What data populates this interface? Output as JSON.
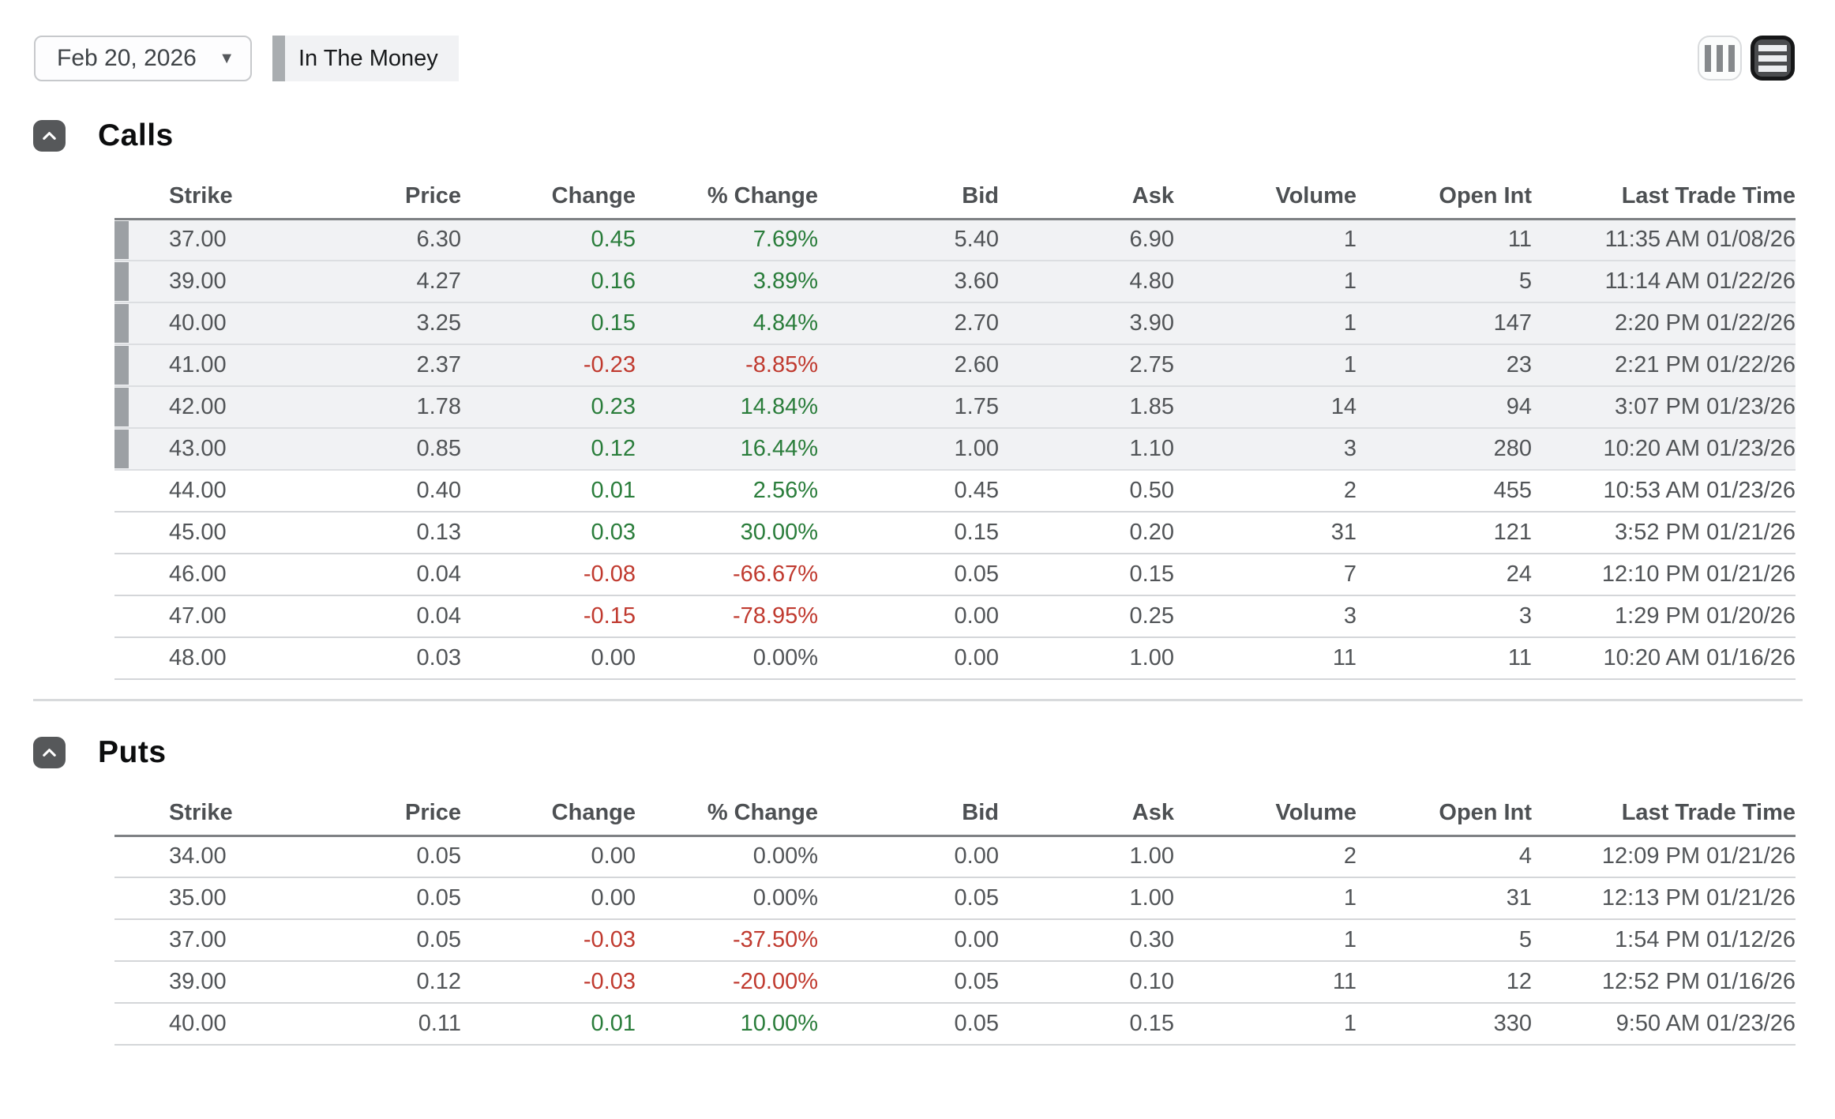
{
  "toolbar": {
    "expiration_dropdown": {
      "value": "Feb 20, 2026",
      "caret_icon": "▼"
    },
    "legend": {
      "label": "In The Money",
      "bar_color": "#a9adb0"
    },
    "view_toggle": {
      "columns_icon": "columns-view-icon",
      "rows_icon": "list-view-icon",
      "selected": "rows"
    }
  },
  "colors": {
    "positive": "#2a7d3b",
    "negative": "#c03a2f",
    "itm_row_background": "#f1f2f4",
    "itm_accent_bar": "#9ca0a4"
  },
  "calls": {
    "title": "Calls",
    "collapse_icon": "chevron-up-icon",
    "columns": [
      "Strike",
      "Price",
      "Change",
      "% Change",
      "Bid",
      "Ask",
      "Volume",
      "Open Int",
      "Last Trade Time"
    ],
    "rows": [
      {
        "itm": true,
        "cells": [
          "37.00",
          "6.30",
          "0.45",
          "7.69%",
          "5.40",
          "6.90",
          "1",
          "11",
          "11:35 AM 01/08/26"
        ]
      },
      {
        "itm": true,
        "cells": [
          "39.00",
          "4.27",
          "0.16",
          "3.89%",
          "3.60",
          "4.80",
          "1",
          "5",
          "11:14 AM 01/22/26"
        ]
      },
      {
        "itm": true,
        "cells": [
          "40.00",
          "3.25",
          "0.15",
          "4.84%",
          "2.70",
          "3.90",
          "1",
          "147",
          "2:20 PM 01/22/26"
        ]
      },
      {
        "itm": true,
        "cells": [
          "41.00",
          "2.37",
          "-0.23",
          "-8.85%",
          "2.60",
          "2.75",
          "1",
          "23",
          "2:21 PM 01/22/26"
        ]
      },
      {
        "itm": true,
        "cells": [
          "42.00",
          "1.78",
          "0.23",
          "14.84%",
          "1.75",
          "1.85",
          "14",
          "94",
          "3:07 PM 01/23/26"
        ]
      },
      {
        "itm": true,
        "cells": [
          "43.00",
          "0.85",
          "0.12",
          "16.44%",
          "1.00",
          "1.10",
          "3",
          "280",
          "10:20 AM 01/23/26"
        ]
      },
      {
        "itm": false,
        "cells": [
          "44.00",
          "0.40",
          "0.01",
          "2.56%",
          "0.45",
          "0.50",
          "2",
          "455",
          "10:53 AM 01/23/26"
        ]
      },
      {
        "itm": false,
        "cells": [
          "45.00",
          "0.13",
          "0.03",
          "30.00%",
          "0.15",
          "0.20",
          "31",
          "121",
          "3:52 PM 01/21/26"
        ]
      },
      {
        "itm": false,
        "cells": [
          "46.00",
          "0.04",
          "-0.08",
          "-66.67%",
          "0.05",
          "0.15",
          "7",
          "24",
          "12:10 PM 01/21/26"
        ]
      },
      {
        "itm": false,
        "cells": [
          "47.00",
          "0.04",
          "-0.15",
          "-78.95%",
          "0.00",
          "0.25",
          "3",
          "3",
          "1:29 PM 01/20/26"
        ]
      },
      {
        "itm": false,
        "cells": [
          "48.00",
          "0.03",
          "0.00",
          "0.00%",
          "0.00",
          "1.00",
          "11",
          "11",
          "10:20 AM 01/16/26"
        ]
      }
    ]
  },
  "puts": {
    "title": "Puts",
    "collapse_icon": "chevron-up-icon",
    "columns": [
      "Strike",
      "Price",
      "Change",
      "% Change",
      "Bid",
      "Ask",
      "Volume",
      "Open Int",
      "Last Trade Time"
    ],
    "rows": [
      {
        "itm": false,
        "cells": [
          "34.00",
          "0.05",
          "0.00",
          "0.00%",
          "0.00",
          "1.00",
          "2",
          "4",
          "12:09 PM 01/21/26"
        ]
      },
      {
        "itm": false,
        "cells": [
          "35.00",
          "0.05",
          "0.00",
          "0.00%",
          "0.05",
          "1.00",
          "1",
          "31",
          "12:13 PM 01/21/26"
        ]
      },
      {
        "itm": false,
        "cells": [
          "37.00",
          "0.05",
          "-0.03",
          "-37.50%",
          "0.00",
          "0.30",
          "1",
          "5",
          "1:54 PM 01/12/26"
        ]
      },
      {
        "itm": false,
        "cells": [
          "39.00",
          "0.12",
          "-0.03",
          "-20.00%",
          "0.05",
          "0.10",
          "11",
          "12",
          "12:52 PM 01/16/26"
        ]
      },
      {
        "itm": false,
        "cells": [
          "40.00",
          "0.11",
          "0.01",
          "10.00%",
          "0.05",
          "0.15",
          "1",
          "330",
          "9:50 AM 01/23/26"
        ]
      }
    ]
  }
}
